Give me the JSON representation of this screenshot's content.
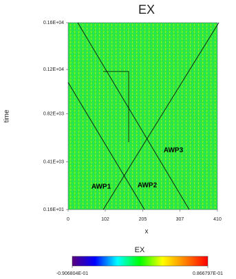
{
  "chart_data": {
    "type": "heatmap",
    "title": "EX",
    "x_label": "x",
    "y_label": "time",
    "xlim": [
      0,
      410
    ],
    "xticks": [
      0,
      102,
      205,
      307,
      410
    ],
    "ylim": [
      1.6,
      1600
    ],
    "yticks": [
      {
        "value": 1.6,
        "label": "0.16E+01"
      },
      {
        "value": 410,
        "label": "0.41E+03"
      },
      {
        "value": 820,
        "label": "0.82E+03"
      },
      {
        "value": 1200,
        "label": "0.12E+04"
      },
      {
        "value": 1600,
        "label": "0.16E+04"
      }
    ],
    "annotations": [
      "AWP1",
      "AWP2",
      "AWP3"
    ],
    "colorbar": {
      "label": "EX",
      "colors": [
        "#5a007f",
        "#0000ff",
        "#00ffff",
        "#00ff00",
        "#ffff00",
        "#ff8000",
        "#ff0000"
      ],
      "range": [
        -0.0906804,
        0.0866797
      ],
      "ticks": [
        {
          "value": -0.0906804,
          "label": "-0.906804E-01"
        },
        {
          "value": 0.0866797,
          "label": "0.866797E-01"
        }
      ]
    }
  }
}
